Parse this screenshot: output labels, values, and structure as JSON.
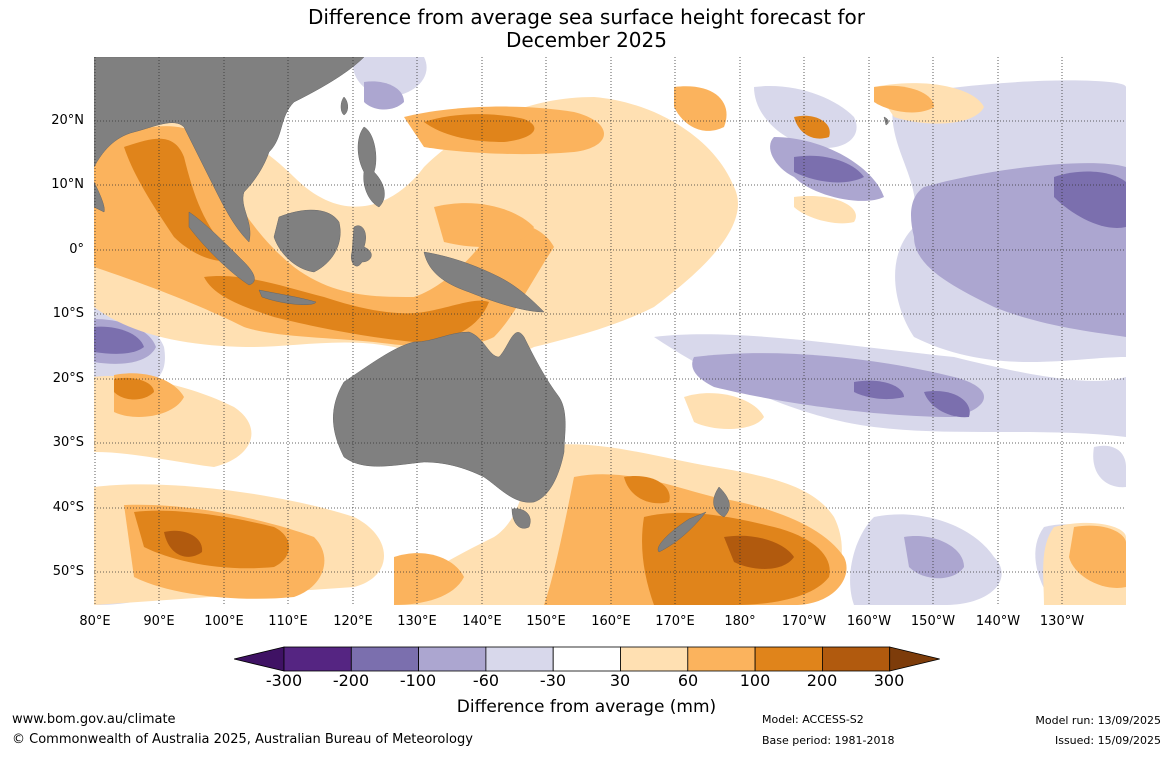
{
  "title": {
    "line1": "Difference from average sea surface height forecast for",
    "line2": "December 2025"
  },
  "lat_labels": [
    "20°N",
    "10°N",
    "0°",
    "10°S",
    "20°S",
    "30°S",
    "40°S",
    "50°S"
  ],
  "lon_labels": [
    "80°E",
    "90°E",
    "100°E",
    "110°E",
    "120°E",
    "130°E",
    "140°E",
    "150°E",
    "160°E",
    "170°E",
    "180°",
    "170°W",
    "160°W",
    "150°W",
    "140°W",
    "130°W"
  ],
  "colorbar": {
    "ticks": [
      "-300",
      "-200",
      "-100",
      "-60",
      "-30",
      "30",
      "60",
      "100",
      "200",
      "300"
    ],
    "colors": [
      "#3f1264",
      "#552582",
      "#7b6fae",
      "#aca6d0",
      "#d8d8eb",
      "#ffffff",
      "#ffe0b2",
      "#fbb35d",
      "#e0841b",
      "#b15a0e",
      "#7d3c0a"
    ],
    "label": "Difference from average (mm)"
  },
  "map_colors": {
    "land": "#808080",
    "ocean": "#ffffff",
    "grid": "#333333"
  },
  "footer": {
    "website": "www.bom.gov.au/climate",
    "copyright": "© Commonwealth of Australia 2025, Australian Bureau of Meteorology",
    "model": "Model: ACCESS-S2",
    "base_period": "Base period: 1981-2018",
    "model_run": "Model run: 13/09/2025",
    "issued": "Issued: 15/09/2025"
  }
}
